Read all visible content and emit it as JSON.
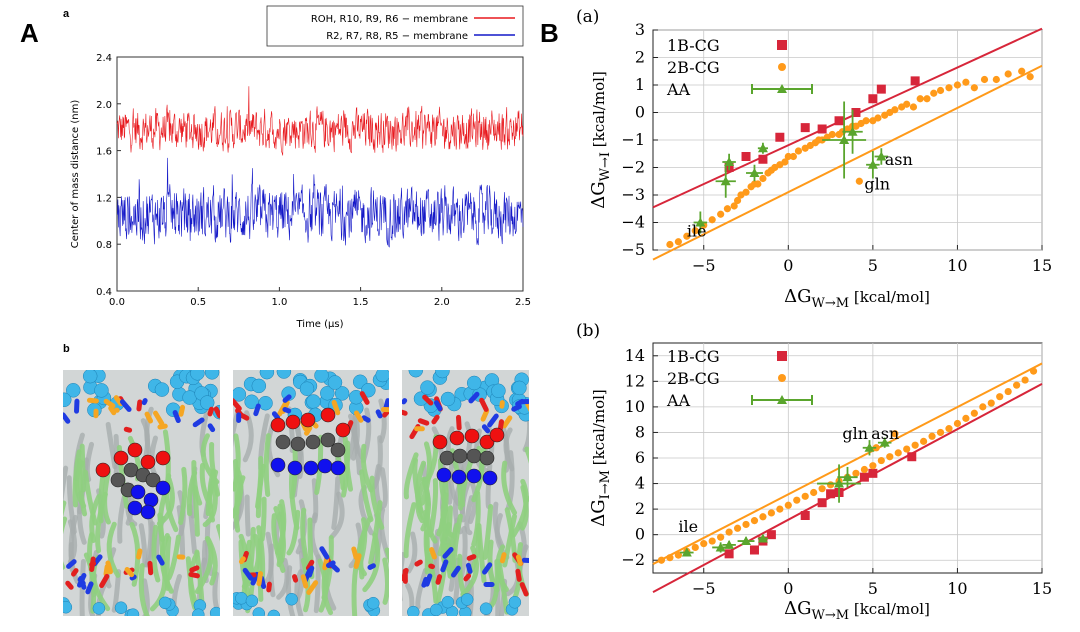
{
  "labels": {
    "A": "A",
    "B": "B",
    "a": "a",
    "b": "b",
    "Ba": "(a)",
    "Bb": "(b)"
  },
  "colors": {
    "red": "#e8191e",
    "blue": "#1418c8",
    "crimson": "#d7263a",
    "orange": "#ff9a1a",
    "green": "#5aa52d"
  },
  "images": {
    "snapshots_alt": ""
  },
  "chart_data": [
    {
      "id": "ts",
      "type": "line",
      "xlabel": "Time (μs)",
      "ylabel": "Center of mass distance (nm)",
      "xlim": [
        0,
        2.5
      ],
      "ylim": [
        0.4,
        2.4
      ],
      "xticks": [
        0.0,
        0.5,
        1.0,
        1.5,
        2.0,
        2.5
      ],
      "xtick_labels": [
        "0.0",
        "0.5",
        "1.0",
        "1.5",
        "2.0",
        "2.5"
      ],
      "yticks": [
        0.4,
        0.8,
        1.2,
        1.6,
        2.0,
        2.4
      ],
      "ytick_labels": [
        "0.4",
        "0.8",
        "1.2",
        "1.6",
        "2.0",
        "2.4"
      ],
      "legend_position": "top-right-outside",
      "series": [
        {
          "name": "ROH, R10, R9, R6 − membrane",
          "color": "#e8191e",
          "mean": 1.78,
          "min": 1.45,
          "max": 2.15,
          "n_points": 900
        },
        {
          "name": "R2, R7, R8, R5 − membrane",
          "color": "#1418c8",
          "mean": 1.05,
          "min": 0.65,
          "max": 1.55,
          "n_points": 900
        }
      ]
    },
    {
      "id": "Ba",
      "type": "scatter",
      "xlabel": "ΔG_W→M [kcal/mol]",
      "ylabel": "ΔG_W→I [kcal/mol]",
      "xlim": [
        -8,
        15
      ],
      "ylim": [
        -5,
        3
      ],
      "xticks": [
        -5,
        0,
        5,
        10,
        15
      ],
      "xtick_labels": [
        "−5",
        "0",
        "5",
        "10",
        "15"
      ],
      "yticks": [
        -5,
        -4,
        -3,
        -2,
        -1,
        0,
        1,
        2,
        3
      ],
      "ytick_labels": [
        "−5",
        "−4",
        "−3",
        "−2",
        "−1",
        "0",
        "1",
        "2",
        "3"
      ],
      "legend": [
        "1B-CG",
        "2B-CG",
        "AA"
      ],
      "fits": [
        {
          "series": "1B-CG",
          "x": [
            -8,
            15
          ],
          "y": [
            -3.45,
            3.05
          ]
        },
        {
          "series": "2B-CG",
          "x": [
            -8,
            15
          ],
          "y": [
            -5.35,
            1.7
          ]
        }
      ],
      "series": [
        {
          "name": "1B-CG",
          "marker": "square",
          "x": [
            -3.5,
            -2.5,
            -1.5,
            -0.5,
            1.0,
            2.0,
            3.0,
            4.0,
            5.0,
            5.5,
            7.5
          ],
          "y": [
            -2.0,
            -1.6,
            -1.7,
            -0.9,
            -0.55,
            -0.6,
            -0.3,
            0.0,
            0.5,
            0.85,
            1.15
          ]
        },
        {
          "name": "2B-CG",
          "marker": "circle",
          "x": [
            -7,
            -6.5,
            -6,
            -5.5,
            -5,
            -4.5,
            -4,
            -3.6,
            -3.2,
            -3,
            -2.8,
            -2.5,
            -2.2,
            -2,
            -1.8,
            -1.5,
            -1.2,
            -1,
            -0.8,
            -0.5,
            -0.2,
            0,
            0.3,
            0.6,
            1,
            1.3,
            1.6,
            2,
            2.3,
            2.6,
            3,
            3.2,
            3.5,
            3.8,
            4,
            4.3,
            4.6,
            5,
            5.3,
            5.7,
            6,
            6.3,
            6.7,
            7,
            7.4,
            7.8,
            8.2,
            8.6,
            9,
            9.5,
            10,
            10.5,
            11,
            11.6,
            12.3,
            13,
            13.8,
            14.3,
            4.2,
            1.8
          ],
          "y": [
            -4.8,
            -4.7,
            -4.5,
            -4.3,
            -4.1,
            -3.9,
            -3.7,
            -3.5,
            -3.4,
            -3.2,
            -3.0,
            -2.9,
            -2.7,
            -2.6,
            -2.6,
            -2.4,
            -2.2,
            -2.1,
            -2.0,
            -1.9,
            -1.8,
            -1.6,
            -1.6,
            -1.4,
            -1.3,
            -1.2,
            -1.1,
            -1.0,
            -0.9,
            -0.8,
            -0.8,
            -0.7,
            -0.6,
            -0.5,
            -0.5,
            -0.4,
            -0.3,
            -0.3,
            -0.2,
            -0.1,
            0.0,
            0.1,
            0.2,
            0.3,
            0.2,
            0.5,
            0.5,
            0.7,
            0.8,
            0.9,
            1.0,
            1.1,
            0.9,
            1.2,
            1.2,
            1.4,
            1.5,
            1.3,
            -2.5,
            -1.0
          ]
        },
        {
          "name": "AA",
          "marker": "triangle",
          "x": [
            -5.2,
            -3.7,
            -3.5,
            -2.0,
            -1.5,
            3.3,
            3.8,
            5.0,
            5.5
          ],
          "y": [
            -4.0,
            -2.5,
            -1.8,
            -2.2,
            -1.3,
            -1.0,
            -0.7,
            -1.9,
            -1.6
          ],
          "xerr": [
            0.4,
            0.6,
            0.4,
            0.5,
            0.3,
            1.3,
            0.6,
            0.4,
            0.4
          ],
          "yerr": [
            0.4,
            0.6,
            0.3,
            0.3,
            0.2,
            1.4,
            0.8,
            0.5,
            0.3
          ]
        }
      ],
      "annotations": [
        {
          "text": "ile",
          "x": -6.0,
          "y": -4.5
        },
        {
          "text": "gln",
          "x": 4.5,
          "y": -2.8
        },
        {
          "text": "asn",
          "x": 5.7,
          "y": -1.9
        }
      ]
    },
    {
      "id": "Bb",
      "type": "scatter",
      "xlabel": "ΔG_W→M [kcal/mol]",
      "ylabel": "ΔG_I→M [kcal/mol]",
      "xlim": [
        -8,
        15
      ],
      "ylim": [
        -3,
        15
      ],
      "xticks": [
        -5,
        0,
        5,
        10,
        15
      ],
      "xtick_labels": [
        "−5",
        "0",
        "5",
        "10",
        "15"
      ],
      "yticks": [
        -2,
        0,
        2,
        4,
        6,
        8,
        10,
        12,
        14
      ],
      "ytick_labels": [
        "−2",
        "0",
        "2",
        "4",
        "6",
        "8",
        "10",
        "12",
        "14"
      ],
      "legend": [
        "1B-CG",
        "2B-CG",
        "AA"
      ],
      "fits": [
        {
          "series": "1B-CG",
          "x": [
            -8,
            15
          ],
          "y": [
            -4.5,
            11.8
          ]
        },
        {
          "series": "2B-CG",
          "x": [
            -8,
            15
          ],
          "y": [
            -2.3,
            13.4
          ]
        }
      ],
      "series": [
        {
          "name": "1B-CG",
          "marker": "square",
          "x": [
            -3.5,
            -2.0,
            -1.5,
            -1.0,
            1.0,
            2.0,
            2.5,
            3.0,
            4.5,
            5.0,
            7.3
          ],
          "y": [
            -1.5,
            -1.2,
            -0.5,
            0.0,
            1.5,
            2.5,
            3.2,
            3.3,
            4.5,
            4.8,
            6.1
          ]
        },
        {
          "name": "2B-CG",
          "marker": "circle",
          "x": [
            -7.5,
            -7,
            -6.5,
            -6,
            -5.5,
            -5,
            -4.5,
            -4,
            -3.5,
            -3,
            -2.5,
            -2,
            -1.5,
            -1,
            -0.5,
            0,
            0.5,
            1,
            1.5,
            2,
            2.5,
            3,
            3.5,
            4,
            4.5,
            5,
            5.5,
            6,
            6.5,
            7,
            7.5,
            8,
            8.5,
            9,
            9.5,
            10,
            10.5,
            11,
            11.5,
            12,
            12.5,
            13,
            13.5,
            14,
            14.5,
            5.2,
            6.3
          ],
          "y": [
            -2.0,
            -1.8,
            -1.6,
            -1.3,
            -1.0,
            -0.7,
            -0.5,
            -0.2,
            0.2,
            0.5,
            0.8,
            1.1,
            1.4,
            1.7,
            2.0,
            2.3,
            2.7,
            3.0,
            3.3,
            3.6,
            3.9,
            4.2,
            4.5,
            4.8,
            5.1,
            5.4,
            5.8,
            6.1,
            6.4,
            6.7,
            7.0,
            7.3,
            7.7,
            8.0,
            8.3,
            8.7,
            9.1,
            9.5,
            10.0,
            10.3,
            10.8,
            11.2,
            11.7,
            12.1,
            12.8,
            6.8,
            7.9
          ]
        },
        {
          "name": "AA",
          "marker": "triangle",
          "x": [
            -6.0,
            -4.0,
            -3.5,
            -2.5,
            -1.5,
            3.0,
            3.5,
            4.8,
            5.7
          ],
          "y": [
            -1.4,
            -1.0,
            -0.8,
            -0.5,
            -0.3,
            4.0,
            4.5,
            6.8,
            7.2
          ],
          "xerr": [
            0.4,
            0.5,
            0.4,
            0.5,
            0.3,
            1.3,
            0.6,
            0.4,
            0.4
          ],
          "yerr": [
            0.3,
            0.4,
            0.3,
            0.3,
            0.2,
            1.5,
            0.8,
            0.6,
            0.4
          ]
        }
      ],
      "annotations": [
        {
          "text": "ile",
          "x": -6.5,
          "y": 0.2
        },
        {
          "text": "gln",
          "x": 3.2,
          "y": 7.5
        },
        {
          "text": "asn",
          "x": 4.9,
          "y": 7.5
        }
      ]
    }
  ]
}
